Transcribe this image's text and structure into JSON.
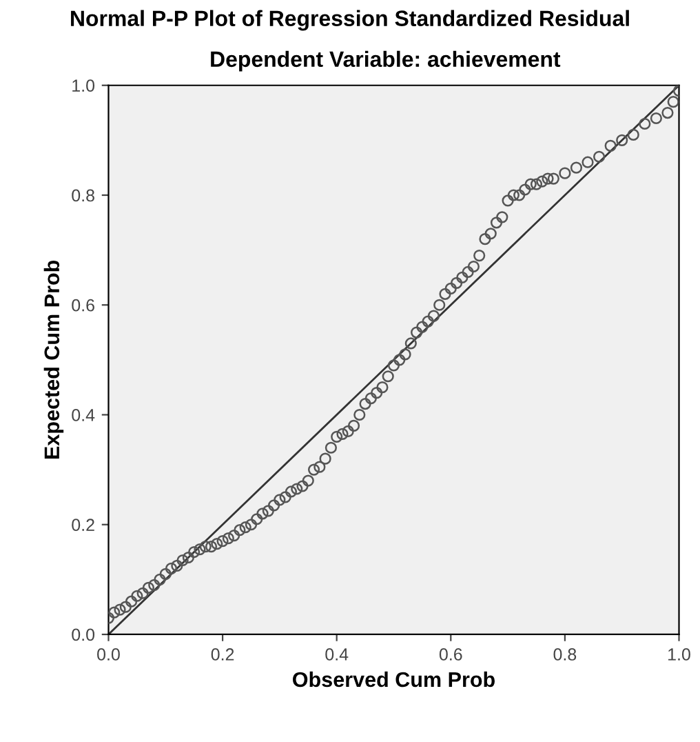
{
  "chart_data": {
    "type": "scatter",
    "title": "Normal P-P Plot of Regression Standardized Residual",
    "subtitle": "Dependent Variable: achievement",
    "xlabel": "Observed Cum Prob",
    "ylabel": "Expected Cum Prob",
    "xlim": [
      0,
      1
    ],
    "ylim": [
      0,
      1
    ],
    "xticks": [
      {
        "value": 0,
        "label": "0.0"
      },
      {
        "value": 0.2,
        "label": "0.2"
      },
      {
        "value": 0.4,
        "label": "0.4"
      },
      {
        "value": 0.6,
        "label": "0.6"
      },
      {
        "value": 0.8,
        "label": "0.8"
      },
      {
        "value": 1,
        "label": "1.0"
      }
    ],
    "yticks": [
      {
        "value": 0,
        "label": "0.0"
      },
      {
        "value": 0.2,
        "label": "0.2"
      },
      {
        "value": 0.4,
        "label": "0.4"
      },
      {
        "value": 0.6,
        "label": "0.6"
      },
      {
        "value": 0.8,
        "label": "0.8"
      },
      {
        "value": 1,
        "label": "1.0"
      }
    ],
    "grid": false,
    "series": [
      {
        "marker": "circle",
        "color": "#555555",
        "x": [
          0.0,
          0.01,
          0.02,
          0.03,
          0.04,
          0.05,
          0.06,
          0.07,
          0.08,
          0.09,
          0.1,
          0.11,
          0.12,
          0.13,
          0.14,
          0.15,
          0.16,
          0.17,
          0.18,
          0.19,
          0.2,
          0.21,
          0.22,
          0.23,
          0.24,
          0.25,
          0.26,
          0.27,
          0.28,
          0.29,
          0.3,
          0.31,
          0.32,
          0.33,
          0.34,
          0.35,
          0.36,
          0.37,
          0.38,
          0.39,
          0.4,
          0.41,
          0.42,
          0.43,
          0.44,
          0.45,
          0.46,
          0.47,
          0.48,
          0.49,
          0.5,
          0.51,
          0.52,
          0.53,
          0.54,
          0.55,
          0.56,
          0.57,
          0.58,
          0.59,
          0.6,
          0.61,
          0.62,
          0.63,
          0.64,
          0.65,
          0.66,
          0.67,
          0.68,
          0.69,
          0.7,
          0.71,
          0.72,
          0.73,
          0.74,
          0.75,
          0.76,
          0.77,
          0.78,
          0.8,
          0.82,
          0.84,
          0.86,
          0.88,
          0.9,
          0.92,
          0.94,
          0.96,
          0.98,
          0.99,
          1.0
        ],
        "values": [
          0.03,
          0.04,
          0.045,
          0.05,
          0.06,
          0.07,
          0.075,
          0.085,
          0.09,
          0.1,
          0.11,
          0.12,
          0.125,
          0.135,
          0.14,
          0.15,
          0.155,
          0.16,
          0.16,
          0.165,
          0.17,
          0.175,
          0.18,
          0.19,
          0.195,
          0.2,
          0.21,
          0.22,
          0.225,
          0.235,
          0.245,
          0.25,
          0.26,
          0.265,
          0.27,
          0.28,
          0.3,
          0.305,
          0.32,
          0.34,
          0.36,
          0.365,
          0.37,
          0.38,
          0.4,
          0.42,
          0.43,
          0.44,
          0.45,
          0.47,
          0.49,
          0.5,
          0.51,
          0.53,
          0.55,
          0.56,
          0.57,
          0.58,
          0.6,
          0.62,
          0.63,
          0.64,
          0.65,
          0.66,
          0.67,
          0.69,
          0.72,
          0.73,
          0.75,
          0.76,
          0.79,
          0.8,
          0.8,
          0.81,
          0.82,
          0.82,
          0.825,
          0.83,
          0.83,
          0.84,
          0.85,
          0.86,
          0.87,
          0.89,
          0.9,
          0.91,
          0.93,
          0.94,
          0.95,
          0.97,
          0.99
        ]
      },
      {
        "type": "line",
        "marker": "none",
        "color": "#333333",
        "x": [
          0,
          1
        ],
        "values": [
          0,
          1
        ]
      }
    ]
  }
}
